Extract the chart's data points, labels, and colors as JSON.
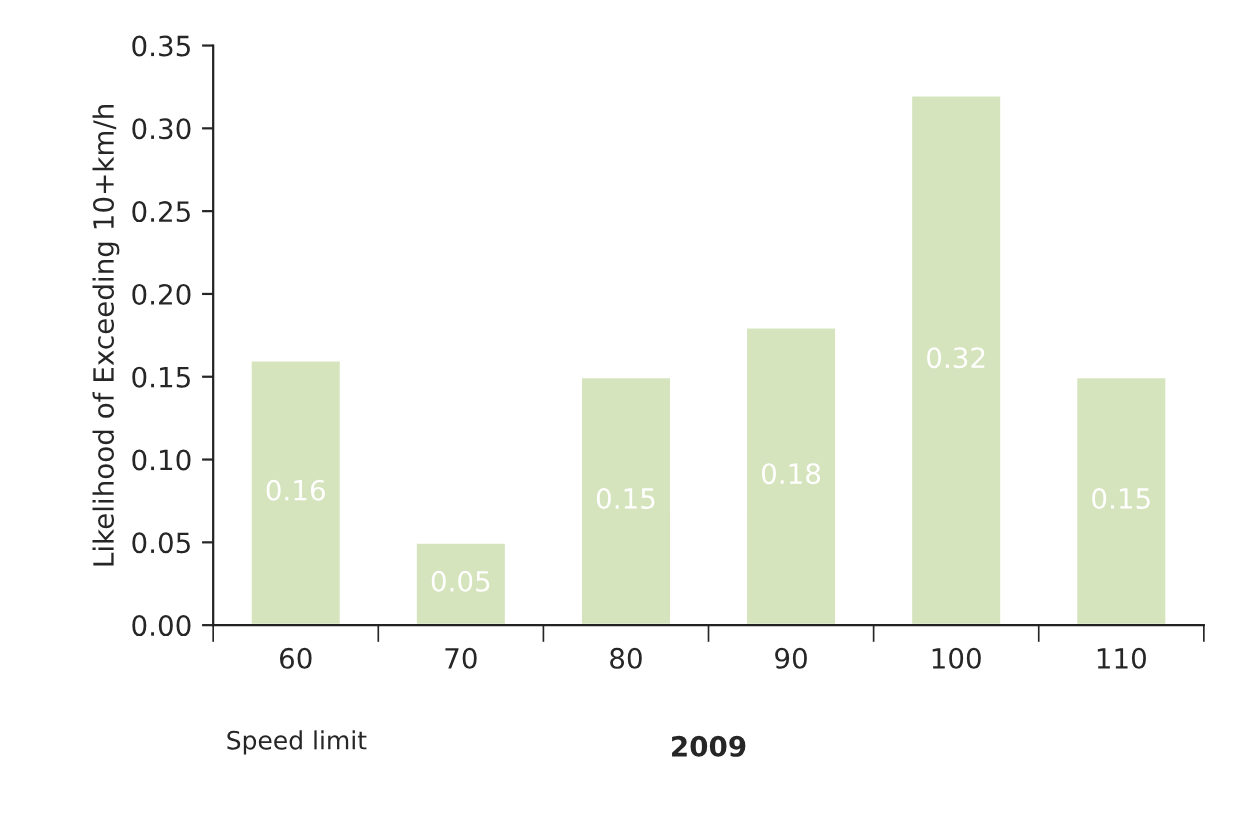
{
  "chart_data": {
    "type": "bar",
    "xlabel": "2009",
    "ylabel": "Likelihood of Exceeding 10+km/h",
    "categories": [
      "60",
      "70",
      "80",
      "90",
      "100",
      "110"
    ],
    "values": [
      0.16,
      0.05,
      0.15,
      0.18,
      0.32,
      0.15
    ],
    "data_labels": true,
    "color": "#d6e4bd",
    "ylim": [
      0,
      0.35
    ],
    "yticks": [
      {
        "value": 0,
        "label": "0.00"
      },
      {
        "value": 0.05,
        "label": "0.05"
      },
      {
        "value": 0.1,
        "label": "0.10"
      },
      {
        "value": 0.15,
        "label": "0.15"
      },
      {
        "value": 0.2,
        "label": "0.20"
      },
      {
        "value": 0.25,
        "label": "0.25"
      },
      {
        "value": 0.3,
        "label": "0.30"
      },
      {
        "value": 0.35,
        "label": "0.35"
      }
    ],
    "annotations": [
      "Speed limit"
    ],
    "grid": false,
    "legend": false
  }
}
